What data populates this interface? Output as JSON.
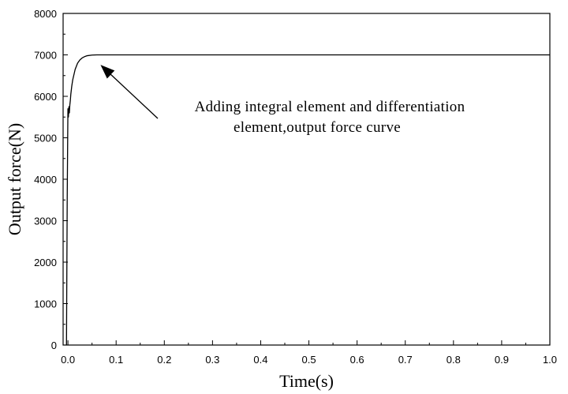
{
  "chart_data": {
    "type": "line",
    "title": "",
    "xlabel": "Time(s)",
    "ylabel": "Output force(N)",
    "xlim": [
      -0.01,
      1.0
    ],
    "ylim": [
      0,
      8000
    ],
    "x_ticks": [
      "0.0",
      "0.1",
      "0.2",
      "0.3",
      "0.4",
      "0.5",
      "0.6",
      "0.7",
      "0.8",
      "0.9",
      "1.0"
    ],
    "y_ticks": [
      "0",
      "1000",
      "2000",
      "3000",
      "4000",
      "5000",
      "6000",
      "7000",
      "8000"
    ],
    "grid": false,
    "legend": "none",
    "series": [
      {
        "x": [
          -0.003,
          -0.0025,
          -0.0015,
          -0.0005,
          0.0,
          0.001,
          0.002,
          0.003,
          0.004,
          0.005,
          0.006,
          0.008,
          0.01,
          0.015,
          0.02,
          0.025,
          0.03,
          0.035,
          0.04,
          0.05,
          0.06,
          0.07,
          0.08,
          0.1,
          0.2,
          0.4,
          0.6,
          0.8,
          1.0
        ],
        "y": [
          0,
          1200,
          3500,
          5000,
          5700,
          5500,
          5750,
          5600,
          5800,
          5900,
          6050,
          6250,
          6400,
          6650,
          6800,
          6880,
          6930,
          6960,
          6980,
          6995,
          7000,
          7000,
          7000,
          7000,
          7000,
          7000,
          7000,
          7000,
          7000
        ],
        "color": "#000000"
      }
    ],
    "annotation": {
      "line1": "Adding integral element and differentiation",
      "line2": "element,output force curve",
      "arrow_target": [
        0.07,
        7000
      ]
    }
  }
}
